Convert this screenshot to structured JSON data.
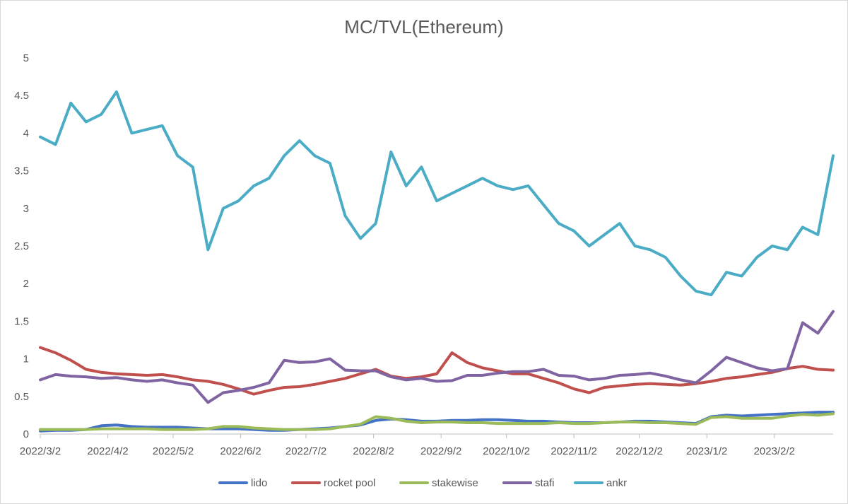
{
  "chart_data": {
    "type": "line",
    "title": "MC/TVL(Ethereum)",
    "xlabel": "",
    "ylabel": "",
    "ylim": [
      0,
      5
    ],
    "yticks": [
      "0",
      "0.5",
      "1",
      "1.5",
      "2",
      "2.5",
      "3",
      "3.5",
      "4",
      "4.5",
      "5"
    ],
    "xticks": [
      "2022/3/2",
      "2022/4/2",
      "2022/5/2",
      "2022/6/2",
      "2022/7/2",
      "2022/8/2",
      "2022/9/2",
      "2022/10/2",
      "2022/11/2",
      "2022/12/2",
      "2023/1/2",
      "2023/2/2"
    ],
    "xlim": [
      "2022/3/2",
      "2023/3/1"
    ],
    "grid": false,
    "legend_position": "bottom",
    "x": [
      "2022/3/2",
      "2022/3/9",
      "2022/3/16",
      "2022/3/23",
      "2022/3/30",
      "2022/4/6",
      "2022/4/13",
      "2022/4/20",
      "2022/4/27",
      "2022/5/4",
      "2022/5/11",
      "2022/5/18",
      "2022/5/25",
      "2022/6/1",
      "2022/6/8",
      "2022/6/15",
      "2022/6/22",
      "2022/6/29",
      "2022/7/6",
      "2022/7/13",
      "2022/7/20",
      "2022/7/27",
      "2022/8/3",
      "2022/8/10",
      "2022/8/17",
      "2022/8/24",
      "2022/8/31",
      "2022/9/7",
      "2022/9/14",
      "2022/9/21",
      "2022/9/28",
      "2022/10/5",
      "2022/10/12",
      "2022/10/19",
      "2022/10/26",
      "2022/11/2",
      "2022/11/9",
      "2022/11/16",
      "2022/11/23",
      "2022/11/30",
      "2022/12/7",
      "2022/12/14",
      "2022/12/21",
      "2022/12/28",
      "2023/1/4",
      "2023/1/11",
      "2023/1/18",
      "2023/1/25",
      "2023/2/1",
      "2023/2/8",
      "2023/2/15",
      "2023/2/22",
      "2023/3/1"
    ],
    "series": [
      {
        "name": "lido",
        "color": "#4472c4",
        "values": [
          0.04,
          0.05,
          0.05,
          0.06,
          0.11,
          0.12,
          0.1,
          0.09,
          0.09,
          0.09,
          0.08,
          0.07,
          0.07,
          0.07,
          0.06,
          0.05,
          0.05,
          0.06,
          0.07,
          0.08,
          0.1,
          0.12,
          0.18,
          0.2,
          0.19,
          0.17,
          0.17,
          0.18,
          0.18,
          0.19,
          0.19,
          0.18,
          0.17,
          0.17,
          0.16,
          0.15,
          0.15,
          0.15,
          0.16,
          0.17,
          0.17,
          0.16,
          0.15,
          0.14,
          0.23,
          0.25,
          0.24,
          0.25,
          0.26,
          0.27,
          0.28,
          0.29,
          0.29
        ]
      },
      {
        "name": "rocket pool",
        "color": "#c0504d",
        "values": [
          1.15,
          1.08,
          0.98,
          0.86,
          0.82,
          0.8,
          0.79,
          0.78,
          0.79,
          0.76,
          0.72,
          0.7,
          0.66,
          0.6,
          0.53,
          0.58,
          0.62,
          0.63,
          0.66,
          0.7,
          0.74,
          0.8,
          0.86,
          0.77,
          0.74,
          0.76,
          0.8,
          1.08,
          0.95,
          0.88,
          0.84,
          0.8,
          0.8,
          0.74,
          0.68,
          0.6,
          0.55,
          0.62,
          0.64,
          0.66,
          0.67,
          0.66,
          0.65,
          0.67,
          0.7,
          0.74,
          0.76,
          0.79,
          0.82,
          0.87,
          0.9,
          0.86,
          0.85
        ]
      },
      {
        "name": "stakewise",
        "color": "#9bbb59",
        "values": [
          0.06,
          0.06,
          0.06,
          0.06,
          0.07,
          0.07,
          0.07,
          0.07,
          0.06,
          0.06,
          0.06,
          0.07,
          0.1,
          0.1,
          0.08,
          0.07,
          0.06,
          0.06,
          0.06,
          0.07,
          0.1,
          0.13,
          0.23,
          0.21,
          0.17,
          0.15,
          0.16,
          0.16,
          0.15,
          0.15,
          0.14,
          0.14,
          0.14,
          0.14,
          0.15,
          0.14,
          0.14,
          0.15,
          0.16,
          0.16,
          0.15,
          0.15,
          0.14,
          0.13,
          0.22,
          0.23,
          0.21,
          0.21,
          0.21,
          0.24,
          0.26,
          0.25,
          0.27
        ]
      },
      {
        "name": "stafi",
        "color": "#8064a2",
        "values": [
          0.72,
          0.79,
          0.77,
          0.76,
          0.74,
          0.75,
          0.72,
          0.7,
          0.72,
          0.68,
          0.65,
          0.42,
          0.55,
          0.58,
          0.62,
          0.68,
          0.98,
          0.95,
          0.96,
          1.0,
          0.85,
          0.84,
          0.84,
          0.76,
          0.72,
          0.74,
          0.7,
          0.71,
          0.78,
          0.78,
          0.81,
          0.83,
          0.83,
          0.86,
          0.78,
          0.77,
          0.72,
          0.74,
          0.78,
          0.79,
          0.81,
          0.77,
          0.72,
          0.68,
          0.84,
          1.02,
          0.95,
          0.88,
          0.84,
          0.87,
          1.48,
          1.34,
          1.63
        ]
      },
      {
        "name": "ankr",
        "color": "#4bacc6",
        "values": [
          3.95,
          3.85,
          4.4,
          4.15,
          4.25,
          4.55,
          4.0,
          4.05,
          4.1,
          3.7,
          3.55,
          2.45,
          3.0,
          3.1,
          3.3,
          3.4,
          3.7,
          3.9,
          3.7,
          3.6,
          2.9,
          2.6,
          2.8,
          3.75,
          3.3,
          3.55,
          3.1,
          3.2,
          3.3,
          3.4,
          3.3,
          3.25,
          3.3,
          3.05,
          2.8,
          2.7,
          2.5,
          2.65,
          2.8,
          2.5,
          2.45,
          2.35,
          2.1,
          1.9,
          1.85,
          2.15,
          2.1,
          2.35,
          2.5,
          2.45,
          2.75,
          2.65,
          3.7
        ]
      }
    ]
  }
}
